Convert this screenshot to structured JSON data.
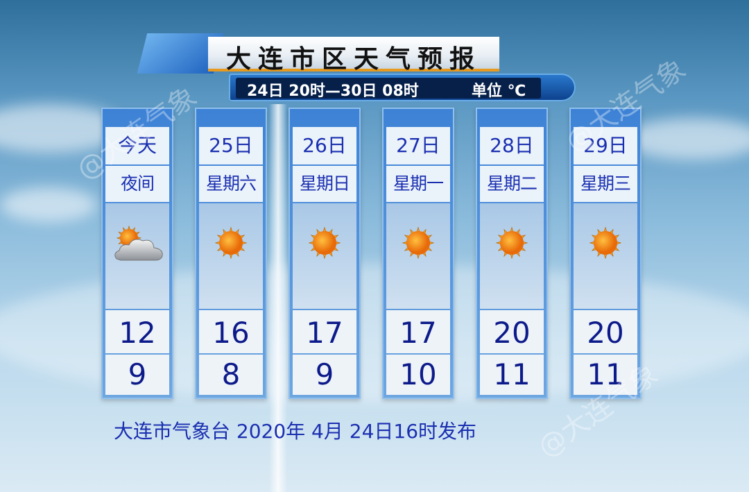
{
  "title": "大连市区天气预报",
  "subtitle": {
    "range": "24日 20时—30日 08时",
    "unit": "单位 ℃"
  },
  "days": [
    {
      "date": "今天",
      "weekday": "夜间",
      "icon": "partly-cloudy-icon",
      "high": "12",
      "low": "9"
    },
    {
      "date": "25日",
      "weekday": "星期六",
      "icon": "sunny-icon",
      "high": "16",
      "low": "8"
    },
    {
      "date": "26日",
      "weekday": "星期日",
      "icon": "sunny-icon",
      "high": "17",
      "low": "9"
    },
    {
      "date": "27日",
      "weekday": "星期一",
      "icon": "sunny-icon",
      "high": "17",
      "low": "10"
    },
    {
      "date": "28日",
      "weekday": "星期二",
      "icon": "sunny-icon",
      "high": "20",
      "low": "11"
    },
    {
      "date": "29日",
      "weekday": "星期三",
      "icon": "sunny-icon",
      "high": "20",
      "low": "11"
    }
  ],
  "footer": "大连市气象台 2020年 4月 24日16时发布",
  "watermark": "@大连气象",
  "colors": {
    "text_blue": "#1a2fb0",
    "accent_orange": "#e79a1e",
    "sun": "#f08a10"
  }
}
